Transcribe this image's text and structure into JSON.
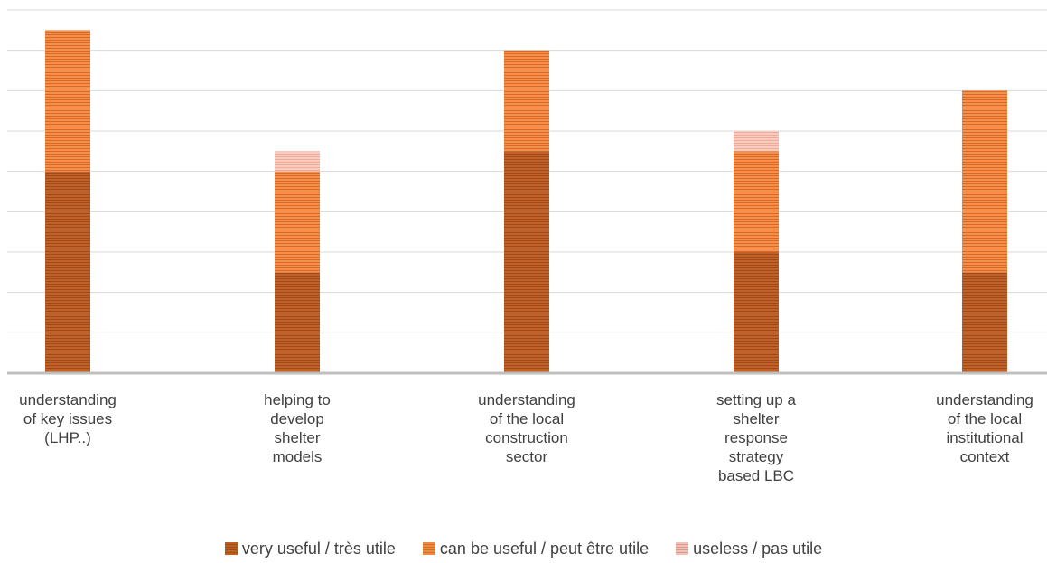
{
  "chart_data": {
    "type": "bar",
    "stacked": true,
    "categories": [
      "understanding\nof key issues\n(LHP..)",
      "helping to\ndevelop\nshelter\nmodels",
      "understanding\nof the local\nconstruction\nsector",
      "setting up a\nshelter\nresponse\nstrategy\nbased LBC",
      "understanding\nof the local\ninstitutional\ncontext"
    ],
    "series": [
      {
        "name": "very useful / très utile",
        "color": "#bf5f1f",
        "values": [
          5,
          2.5,
          5.5,
          3,
          2.5
        ]
      },
      {
        "name": "can be useful / peut être utile",
        "color": "#f08a3c",
        "values": [
          3.5,
          2.5,
          2.5,
          2.5,
          4.5
        ]
      },
      {
        "name": "useless / pas utile",
        "color": "#f6c0b4",
        "values": [
          0,
          0.5,
          0,
          0.5,
          0
        ]
      }
    ],
    "ylim": [
      0,
      9
    ],
    "grid": true,
    "legend": "bottom"
  }
}
